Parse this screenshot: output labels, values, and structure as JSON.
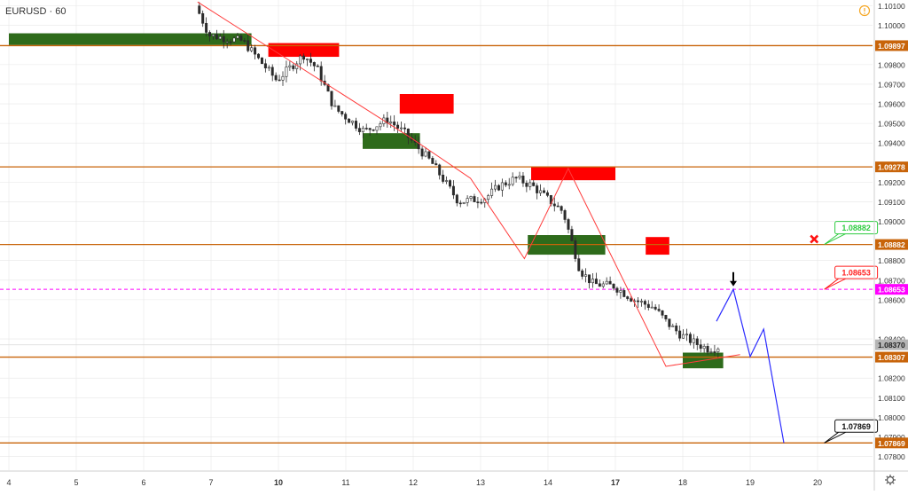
{
  "header": {
    "symbol_label": "EURUSD · 60",
    "alert_icon": "info-circle-icon",
    "alert_color": "#f5a623"
  },
  "settings_icon": "gear-icon",
  "colors": {
    "level": "#c8640a",
    "dashed": "#ff00ff",
    "trend": "#ff3b3b",
    "projection": "#2b2bff",
    "demand": "#2e6b1b",
    "supply": "#ff0000",
    "candle": "#2b2b2b",
    "grid": "#e6e6e6",
    "axis_text": "#333333"
  },
  "chart_data": {
    "type": "candlestick",
    "title": "EURUSD · 60",
    "ylim": [
      1.0773,
      1.1013
    ],
    "y_ticks": [
      "1.10100",
      "1.10000",
      "1.09800",
      "1.09700",
      "1.09600",
      "1.09500",
      "1.09400",
      "1.09200",
      "1.09100",
      "1.09000",
      "1.08800",
      "1.08700",
      "1.08600",
      "1.08400",
      "1.08200",
      "1.08100",
      "1.08000",
      "1.07900",
      "1.07800"
    ],
    "x_ticks": [
      {
        "label": "4",
        "bold": false
      },
      {
        "label": "5",
        "bold": false
      },
      {
        "label": "6",
        "bold": false
      },
      {
        "label": "7",
        "bold": false
      },
      {
        "label": "10",
        "bold": true
      },
      {
        "label": "11",
        "bold": false
      },
      {
        "label": "12",
        "bold": false
      },
      {
        "label": "13",
        "bold": false
      },
      {
        "label": "14",
        "bold": false
      },
      {
        "label": "17",
        "bold": true
      },
      {
        "label": "18",
        "bold": false
      },
      {
        "label": "19",
        "bold": false
      },
      {
        "label": "20",
        "bold": false
      }
    ],
    "levels": [
      {
        "value": 1.09897,
        "label": "1.09897"
      },
      {
        "value": 1.09278,
        "label": "1.09278"
      },
      {
        "value": 1.08882,
        "label": "1.08882"
      },
      {
        "value": 1.08307,
        "label": "1.08307"
      },
      {
        "value": 1.07869,
        "label": "1.07869"
      }
    ],
    "dashed_level": {
      "value": 1.08653,
      "label": "1.08653"
    },
    "current_price": {
      "value": 1.0837,
      "label": "1.08370"
    },
    "price_series": [
      [
        5.8,
        1.101
      ],
      [
        6.0,
        1.0995
      ],
      [
        6.5,
        1.0992
      ],
      [
        6.85,
        1.0978
      ],
      [
        7.0,
        1.0972
      ],
      [
        7.4,
        1.0985
      ],
      [
        7.6,
        1.0978
      ],
      [
        7.85,
        1.0958
      ],
      [
        8.3,
        1.0946
      ],
      [
        8.65,
        1.0952
      ],
      [
        8.9,
        1.0945
      ],
      [
        9.3,
        1.093
      ],
      [
        9.7,
        1.091
      ],
      [
        10.1,
        1.0912
      ],
      [
        10.3,
        1.0918
      ],
      [
        10.55,
        1.0922
      ],
      [
        10.8,
        1.0918
      ],
      [
        11.0,
        1.0912
      ],
      [
        11.25,
        1.0905
      ],
      [
        11.5,
        1.0875
      ],
      [
        11.7,
        1.0868
      ],
      [
        12.0,
        1.0867
      ],
      [
        12.3,
        1.086
      ],
      [
        12.6,
        1.0856
      ],
      [
        12.8,
        1.0848
      ],
      [
        13.0,
        1.0842
      ],
      [
        13.2,
        1.0838
      ],
      [
        13.4,
        1.0835
      ],
      [
        13.55,
        1.0836
      ]
    ],
    "zigzag": [
      [
        5.8,
        1.1012
      ],
      [
        8.95,
        1.0943
      ],
      [
        9.85,
        1.0922
      ],
      [
        10.65,
        1.0881
      ],
      [
        11.3,
        1.0927
      ],
      [
        12.75,
        1.0826
      ],
      [
        13.85,
        1.0832
      ]
    ],
    "projection_path": [
      [
        13.5,
        1.0849
      ],
      [
        13.75,
        1.08653
      ],
      [
        14.0,
        1.0831
      ],
      [
        14.2,
        1.0845
      ],
      [
        14.5,
        1.07869
      ]
    ],
    "projection_arrow_value": 1.087,
    "zones": [
      {
        "kind": "demand",
        "x0": 3.0,
        "x1": 6.6,
        "y0": 1.099,
        "y1": 1.0996
      },
      {
        "kind": "supply",
        "x0": 6.85,
        "x1": 7.9,
        "y0": 1.0984,
        "y1": 1.0991
      },
      {
        "kind": "supply",
        "x0": 8.8,
        "x1": 9.6,
        "y0": 1.0955,
        "y1": 1.0965
      },
      {
        "kind": "demand",
        "x0": 8.25,
        "x1": 9.1,
        "y0": 1.0937,
        "y1": 1.0945
      },
      {
        "kind": "supply",
        "x0": 10.75,
        "x1": 12.0,
        "y0": 1.0921,
        "y1": 1.0928
      },
      {
        "kind": "demand",
        "x0": 10.7,
        "x1": 11.85,
        "y0": 1.0883,
        "y1": 1.0893
      },
      {
        "kind": "supply",
        "x0": 12.45,
        "x1": 12.8,
        "y0": 1.0883,
        "y1": 1.0892
      },
      {
        "kind": "demand",
        "x0": 13.0,
        "x1": 13.6,
        "y0": 1.0825,
        "y1": 1.0833
      }
    ],
    "callouts": [
      {
        "label": "1.08882",
        "color": "#2ecc40",
        "value": 1.08882,
        "x": 15.1
      },
      {
        "label": "1.08653",
        "color": "#ff2020",
        "value": 1.08653,
        "x": 15.1
      },
      {
        "label": "1.07869",
        "color": "#111111",
        "value": 1.07869,
        "x": 15.1
      }
    ],
    "cancel_marker": {
      "value": 1.08882,
      "x": 14.95
    },
    "grid": true
  }
}
